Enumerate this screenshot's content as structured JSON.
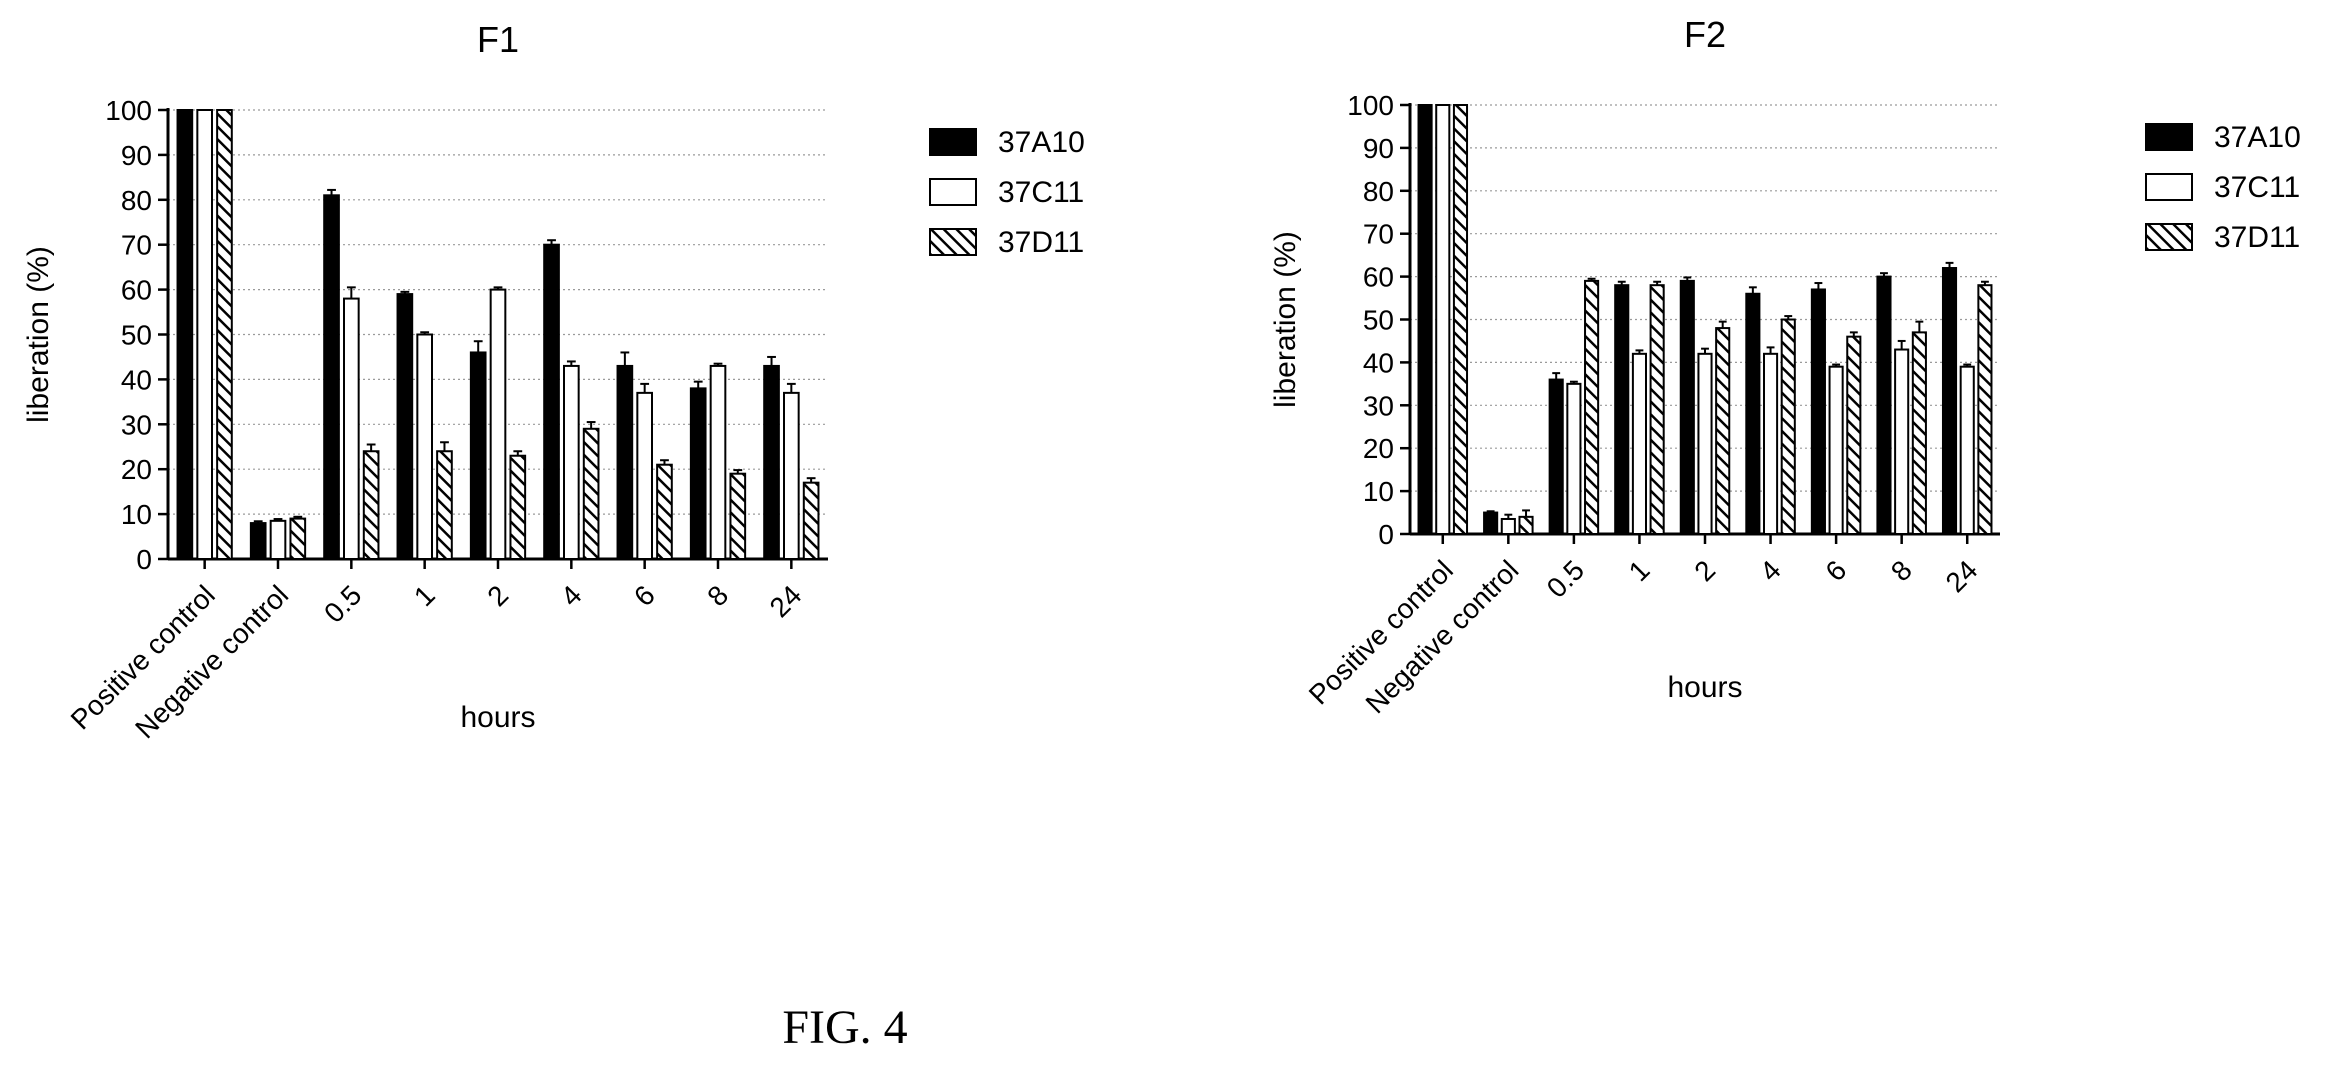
{
  "figure": {
    "caption": "FIG. 4"
  },
  "chart_data": [
    {
      "type": "bar",
      "title": "F1",
      "xlabel": "hours",
      "ylabel": "liberation (%)",
      "ylim": [
        0,
        100
      ],
      "yticks": [
        0,
        10,
        20,
        30,
        40,
        50,
        60,
        70,
        80,
        90,
        100
      ],
      "grid": "horizontal-dotted",
      "legend_position": "right",
      "categories": [
        "Positive control",
        "Negative control",
        "0.5",
        "1",
        "2",
        "4",
        "6",
        "8",
        "24"
      ],
      "series": [
        {
          "name": "37A10",
          "pattern": "solid",
          "fill": "#000000",
          "values": [
            100,
            8,
            81,
            59,
            46,
            70,
            43,
            38,
            43
          ],
          "errors": [
            0,
            0.4,
            1.2,
            0.5,
            2.5,
            1.0,
            3.0,
            1.5,
            2.0
          ]
        },
        {
          "name": "37C11",
          "pattern": "open",
          "fill": "#ffffff",
          "values": [
            100,
            8.5,
            58,
            50,
            60,
            43,
            37,
            43,
            37
          ],
          "errors": [
            0,
            0.4,
            2.5,
            0.5,
            0.5,
            1.0,
            2.0,
            0.5,
            2.0
          ]
        },
        {
          "name": "37D11",
          "pattern": "hatched",
          "fill": "#ffffff",
          "values": [
            100,
            9,
            24,
            24,
            23,
            29,
            21,
            19,
            17
          ],
          "errors": [
            0,
            0.4,
            1.5,
            2.0,
            1.0,
            1.5,
            1.0,
            0.8,
            1.0
          ]
        }
      ]
    },
    {
      "type": "bar",
      "title": "F2",
      "xlabel": "hours",
      "ylabel": "liberation (%)",
      "ylim": [
        0,
        100
      ],
      "yticks": [
        0,
        10,
        20,
        30,
        40,
        50,
        60,
        70,
        80,
        90,
        100
      ],
      "grid": "horizontal-dotted",
      "legend_position": "right",
      "categories": [
        "Positive control",
        "Negative control",
        "0.5",
        "1",
        "2",
        "4",
        "6",
        "8",
        "24"
      ],
      "series": [
        {
          "name": "37A10",
          "pattern": "solid",
          "fill": "#000000",
          "values": [
            100,
            5,
            36,
            58,
            59,
            56,
            57,
            60,
            62
          ],
          "errors": [
            0,
            0.3,
            1.5,
            0.8,
            0.8,
            1.5,
            1.5,
            0.8,
            1.2
          ]
        },
        {
          "name": "37C11",
          "pattern": "open",
          "fill": "#ffffff",
          "values": [
            100,
            3.5,
            35,
            42,
            42,
            42,
            39,
            43,
            39
          ],
          "errors": [
            0,
            1.0,
            0.5,
            0.8,
            1.2,
            1.5,
            0.5,
            2.0,
            0.5
          ]
        },
        {
          "name": "37D11",
          "pattern": "hatched",
          "fill": "#ffffff",
          "values": [
            100,
            4,
            59,
            58,
            48,
            50,
            46,
            47,
            58
          ],
          "errors": [
            0,
            1.5,
            0.5,
            0.8,
            1.5,
            0.8,
            1.0,
            2.5,
            0.8
          ]
        }
      ]
    }
  ]
}
